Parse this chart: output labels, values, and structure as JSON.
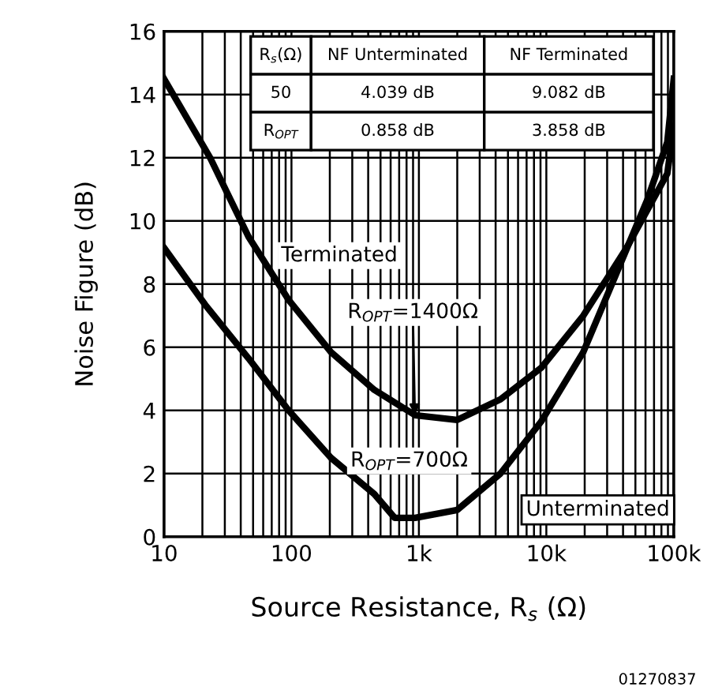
{
  "chart_data": {
    "type": "line",
    "xlabel": "Source Resistance, R$_{s}$ (Ω)",
    "ylabel": "Noise Figure (dB)",
    "log": "x",
    "grid": true,
    "legend": false,
    "marker": "none",
    "line_style": "solid",
    "xlim": [
      10,
      100000
    ],
    "xticks": [
      10,
      100,
      {
        "value": 1000,
        "label": "1k"
      },
      {
        "value": 10000,
        "label": "10k"
      },
      {
        "value": 100000,
        "label": "100k"
      }
    ],
    "ylim": [
      0,
      16
    ],
    "yticks": [
      0,
      2,
      4,
      6,
      8,
      10,
      12,
      14,
      16
    ],
    "series": [
      {
        "color": "#000000",
        "x": [
          10,
          23,
          46,
          95,
          204,
          447,
          933,
          2000,
          4365,
          9120,
          19500,
          42700,
          89000,
          100000
        ],
        "values": [
          14.5,
          12.0,
          9.5,
          7.5,
          5.85,
          4.65,
          3.85,
          3.7,
          4.35,
          5.35,
          7.0,
          9.15,
          11.5,
          13.0
        ]
      },
      {
        "color": "#000000",
        "x": [
          10,
          21,
          46,
          95,
          204,
          447,
          645,
          933,
          2000,
          4365,
          9120,
          19500,
          34700,
          61700,
          89000,
          100000
        ],
        "values": [
          9.15,
          7.35,
          5.65,
          4.0,
          2.5,
          1.35,
          0.6,
          0.6,
          0.85,
          2.0,
          3.65,
          5.85,
          8.25,
          10.65,
          12.5,
          14.5
        ]
      }
    ],
    "annotations": [
      "R$_{s}$(Ω)",
      "NF Unterminated",
      "NF Terminated",
      "50",
      "4.039 dB",
      "9.082 dB",
      "R$_{OPT}$",
      "0.858 dB",
      "3.858 dB",
      "Terminated",
      {
        "text": "R$_{OPT}$=1400Ω",
        "x": 930,
        "y": 3.85
      },
      "R$_{OPT}$=700Ω",
      "Unterminated",
      "01270837"
    ]
  }
}
